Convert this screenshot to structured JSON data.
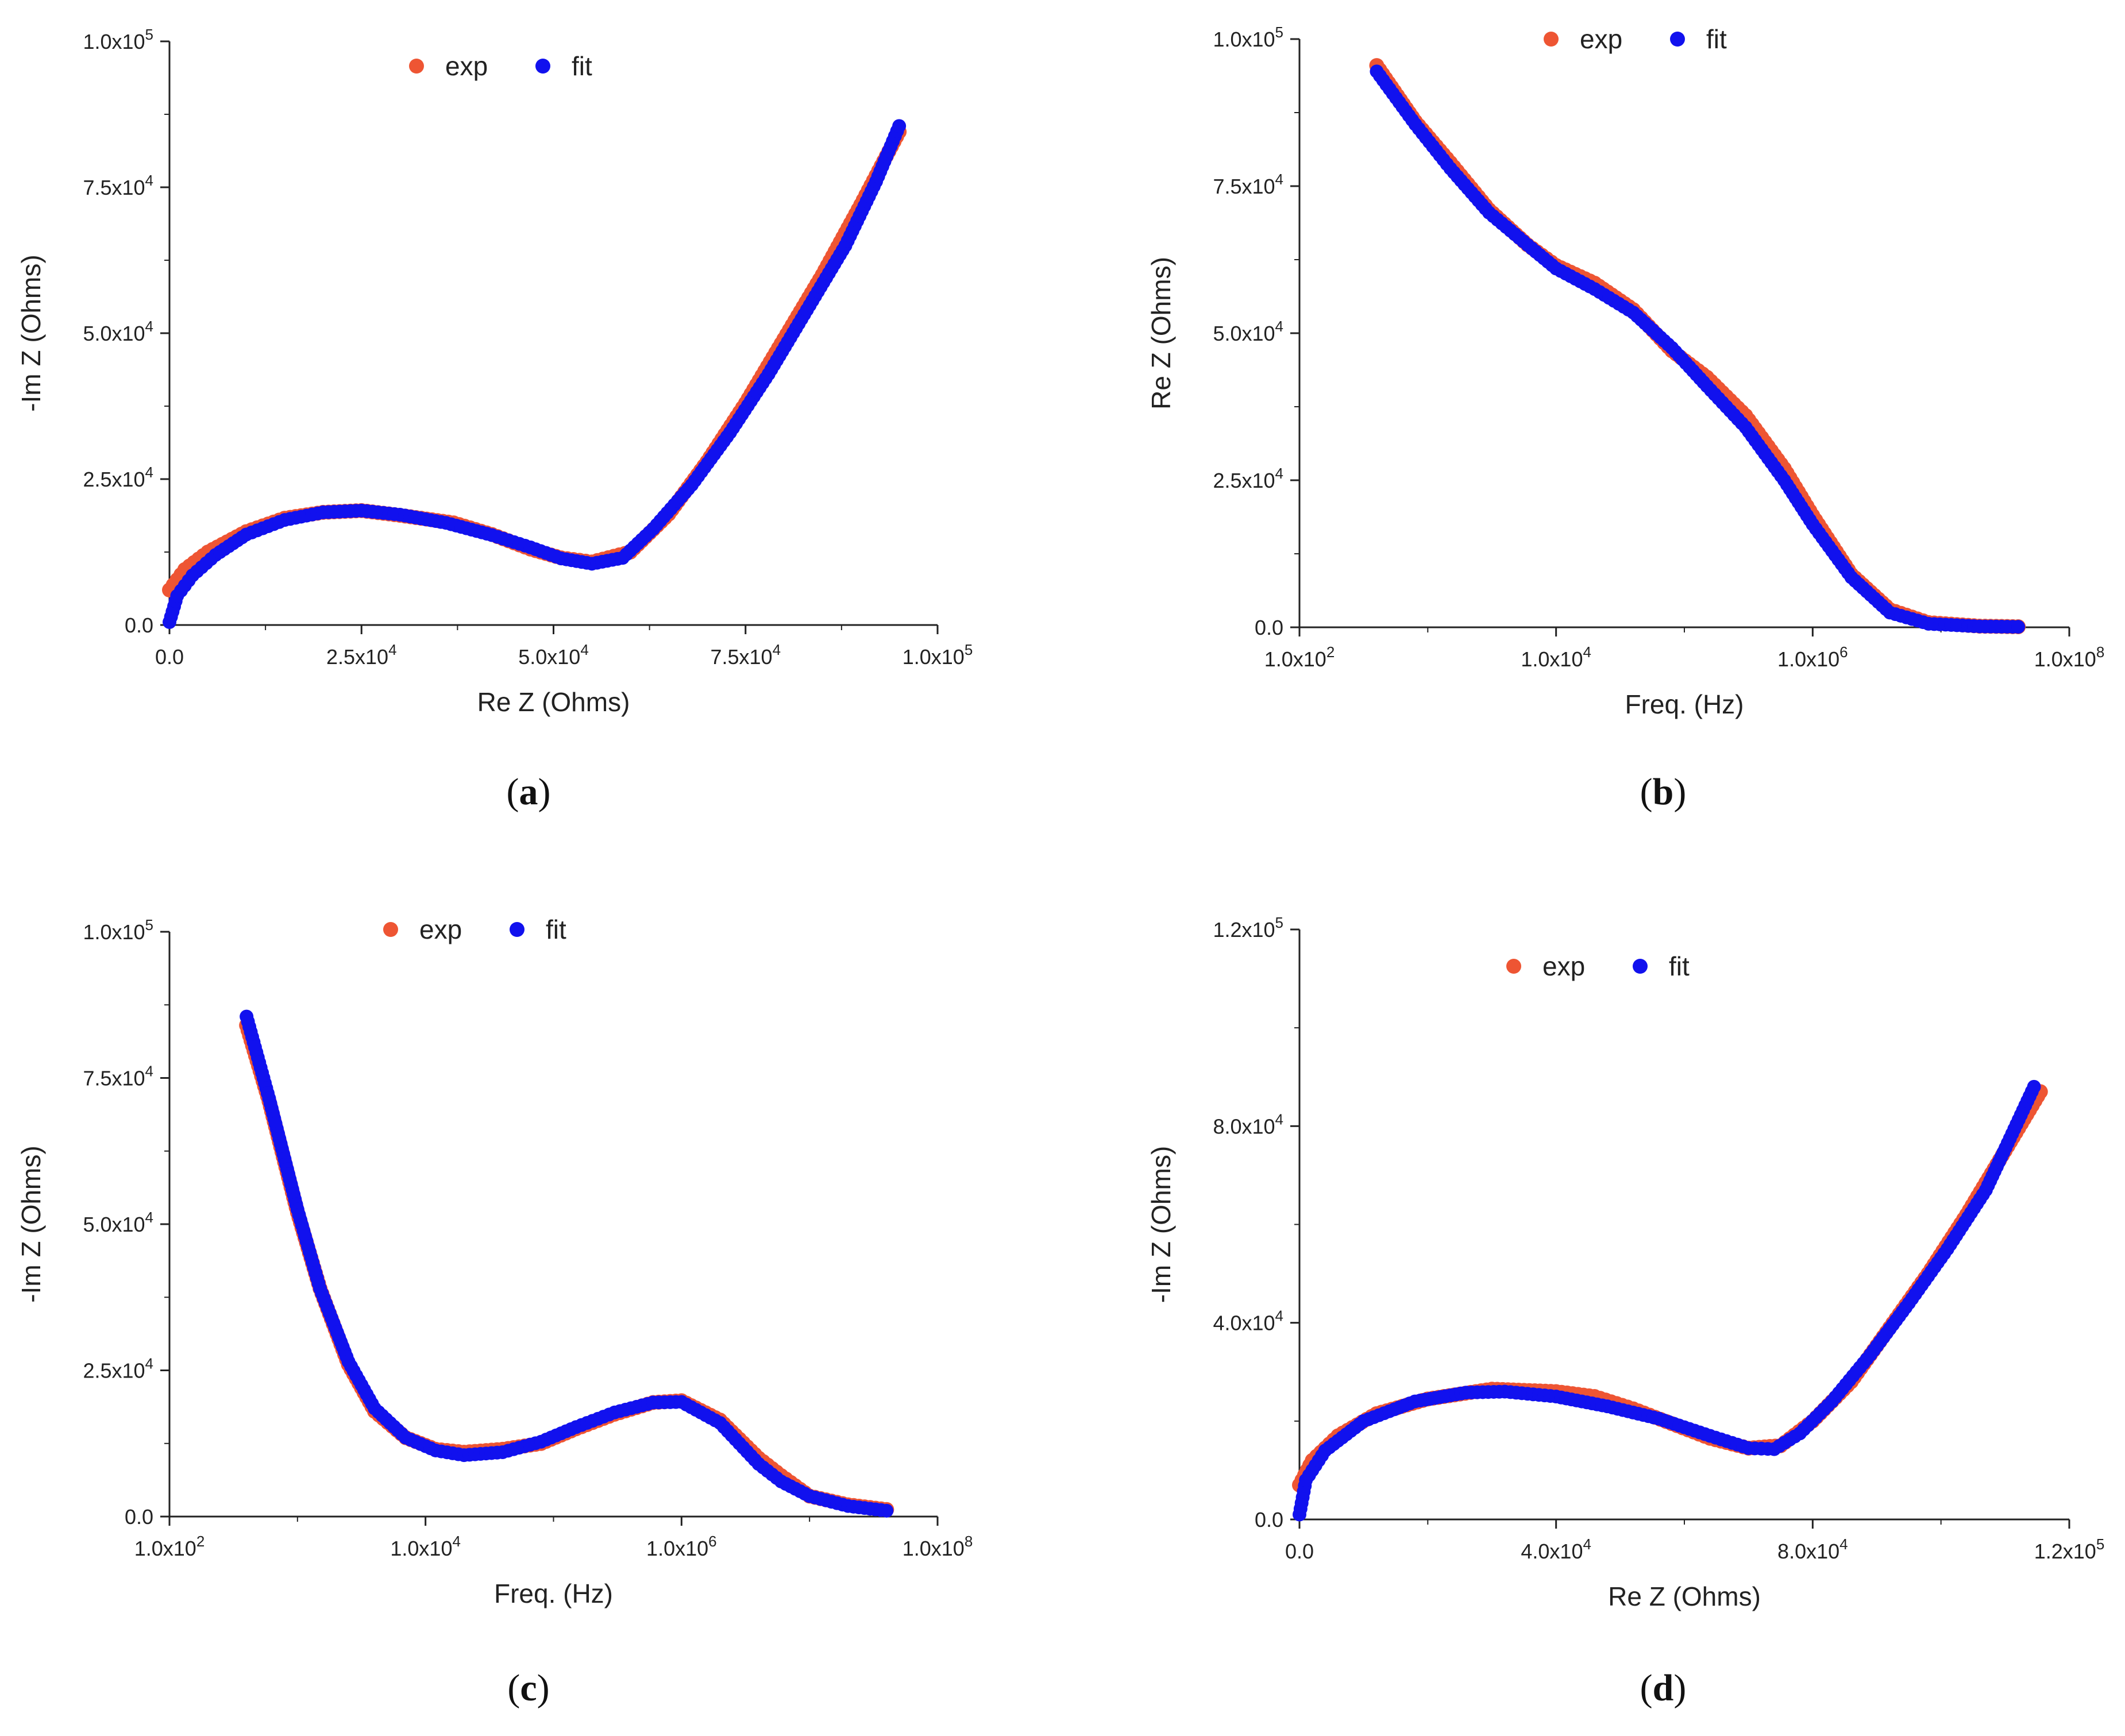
{
  "colors": {
    "exp": "#ee5533",
    "fit": "#1111ee",
    "axis": "#222222"
  },
  "chart_data": [
    {
      "id": "a",
      "type": "scatter",
      "panel_label": "a",
      "xscale": "linear",
      "xlabel": "Re Z (Ohms)",
      "ylabel": "-Im Z (Ohms)",
      "xlim": [
        0,
        100000
      ],
      "ylim": [
        0,
        100000
      ],
      "xticks": [
        {
          "v": 0,
          "m": "0.0",
          "e": ""
        },
        {
          "v": 25000,
          "m": "2.5x10",
          "e": "4"
        },
        {
          "v": 50000,
          "m": "5.0x10",
          "e": "4"
        },
        {
          "v": 75000,
          "m": "7.5x10",
          "e": "4"
        },
        {
          "v": 100000,
          "m": "1.0x10",
          "e": "5"
        }
      ],
      "yticks": [
        {
          "v": 0,
          "m": "0.0",
          "e": ""
        },
        {
          "v": 25000,
          "m": "2.5x10",
          "e": "4"
        },
        {
          "v": 50000,
          "m": "5.0x10",
          "e": "4"
        },
        {
          "v": 75000,
          "m": "7.5x10",
          "e": "4"
        },
        {
          "v": 100000,
          "m": "1.0x10",
          "e": "5"
        }
      ],
      "legend": [
        "exp",
        "fit"
      ],
      "series": [
        {
          "name": "exp",
          "points": [
            [
              0,
              6000
            ],
            [
              2000,
              9500
            ],
            [
              5000,
              12500
            ],
            [
              10000,
              16000
            ],
            [
              15000,
              18300
            ],
            [
              20000,
              19300
            ],
            [
              25000,
              19600
            ],
            [
              30000,
              18800
            ],
            [
              37000,
              17500
            ],
            [
              42000,
              15500
            ],
            [
              47000,
              13000
            ],
            [
              51000,
              11500
            ],
            [
              55000,
              10800
            ],
            [
              60000,
              12500
            ],
            [
              65000,
              19000
            ],
            [
              70000,
              28000
            ],
            [
              75000,
              38000
            ],
            [
              80000,
              49000
            ],
            [
              85000,
              60000
            ],
            [
              90000,
              72000
            ],
            [
              95000,
              84500
            ]
          ]
        },
        {
          "name": "fit",
          "points": [
            [
              0,
              500
            ],
            [
              1000,
              5000
            ],
            [
              3000,
              8500
            ],
            [
              6000,
              12000
            ],
            [
              10000,
              15500
            ],
            [
              15000,
              18000
            ],
            [
              20000,
              19300
            ],
            [
              25000,
              19600
            ],
            [
              30000,
              18900
            ],
            [
              36000,
              17500
            ],
            [
              42000,
              15400
            ],
            [
              47000,
              13300
            ],
            [
              51000,
              11400
            ],
            [
              55000,
              10500
            ],
            [
              59000,
              11500
            ],
            [
              63000,
              16500
            ],
            [
              68000,
              24000
            ],
            [
              73000,
              33000
            ],
            [
              78000,
              43000
            ],
            [
              83000,
              54000
            ],
            [
              88000,
              65000
            ],
            [
              92000,
              76000
            ],
            [
              95000,
              85500
            ]
          ]
        }
      ]
    },
    {
      "id": "b",
      "type": "scatter",
      "panel_label": "b",
      "xscale": "log",
      "xlabel": "Freq. (Hz)",
      "ylabel": "Re Z (Ohms)",
      "xlim": [
        100,
        100000000
      ],
      "ylim": [
        0,
        100000
      ],
      "xticks": [
        {
          "v": 100,
          "m": "1.0x10",
          "e": "2"
        },
        {
          "v": 10000,
          "m": "1.0x10",
          "e": "4"
        },
        {
          "v": 1000000,
          "m": "1.0x10",
          "e": "6"
        },
        {
          "v": 100000000,
          "m": "1.0x10",
          "e": "8"
        }
      ],
      "yticks": [
        {
          "v": 0,
          "m": "0.0",
          "e": ""
        },
        {
          "v": 25000,
          "m": "2.5x10",
          "e": "4"
        },
        {
          "v": 50000,
          "m": "5.0x10",
          "e": "4"
        },
        {
          "v": 75000,
          "m": "7.5x10",
          "e": "4"
        },
        {
          "v": 100000,
          "m": "1.0x10",
          "e": "5"
        }
      ],
      "legend": [
        "exp",
        "fit"
      ],
      "series": [
        {
          "name": "exp",
          "points": [
            [
              400,
              95500
            ],
            [
              800,
              86000
            ],
            [
              1500,
              79000
            ],
            [
              3000,
              71000
            ],
            [
              6000,
              65000
            ],
            [
              10000,
              61500
            ],
            [
              20000,
              58500
            ],
            [
              40000,
              54000
            ],
            [
              80000,
              47000
            ],
            [
              150000,
              42500
            ],
            [
              300000,
              36000
            ],
            [
              600000,
              27000
            ],
            [
              1000000,
              19000
            ],
            [
              2000000,
              9000
            ],
            [
              4000000,
              3000
            ],
            [
              8000000,
              800
            ],
            [
              20000000,
              200
            ],
            [
              40000000,
              100
            ]
          ]
        },
        {
          "name": "fit",
          "points": [
            [
              400,
              94500
            ],
            [
              800,
              85500
            ],
            [
              1500,
              78000
            ],
            [
              3000,
              70500
            ],
            [
              6000,
              65000
            ],
            [
              10000,
              61000
            ],
            [
              20000,
              57500
            ],
            [
              40000,
              53500
            ],
            [
              80000,
              47500
            ],
            [
              150000,
              41000
            ],
            [
              300000,
              34000
            ],
            [
              600000,
              25000
            ],
            [
              1000000,
              17500
            ],
            [
              2000000,
              8500
            ],
            [
              4000000,
              2500
            ],
            [
              8000000,
              600
            ],
            [
              20000000,
              150
            ],
            [
              40000000,
              80
            ]
          ]
        }
      ]
    },
    {
      "id": "c",
      "type": "scatter",
      "panel_label": "c",
      "xscale": "log",
      "xlabel": "Freq. (Hz)",
      "ylabel": "-Im Z (Ohms)",
      "xlim": [
        100,
        100000000
      ],
      "ylim": [
        0,
        100000
      ],
      "xticks": [
        {
          "v": 100,
          "m": "1.0x10",
          "e": "2"
        },
        {
          "v": 10000,
          "m": "1.0x10",
          "e": "4"
        },
        {
          "v": 1000000,
          "m": "1.0x10",
          "e": "6"
        },
        {
          "v": 100000000,
          "m": "1.0x10",
          "e": "8"
        }
      ],
      "yticks": [
        {
          "v": 0,
          "m": "0.0",
          "e": ""
        },
        {
          "v": 25000,
          "m": "2.5x10",
          "e": "4"
        },
        {
          "v": 50000,
          "m": "5.0x10",
          "e": "4"
        },
        {
          "v": 75000,
          "m": "7.5x10",
          "e": "4"
        },
        {
          "v": 100000,
          "m": "1.0x10",
          "e": "5"
        }
      ],
      "legend": [
        "exp",
        "fit"
      ],
      "series": [
        {
          "name": "exp",
          "points": [
            [
              400,
              84000
            ],
            [
              600,
              71000
            ],
            [
              1000,
              52000
            ],
            [
              1500,
              39000
            ],
            [
              2500,
              26000
            ],
            [
              4000,
              18000
            ],
            [
              7000,
              13500
            ],
            [
              12000,
              11500
            ],
            [
              20000,
              11000
            ],
            [
              40000,
              11500
            ],
            [
              80000,
              12500
            ],
            [
              150000,
              15000
            ],
            [
              300000,
              17500
            ],
            [
              600000,
              19500
            ],
            [
              1000000,
              19800
            ],
            [
              2000000,
              16500
            ],
            [
              4000000,
              10000
            ],
            [
              6000000,
              7000
            ],
            [
              10000000,
              3500
            ],
            [
              20000000,
              2000
            ],
            [
              40000000,
              1200
            ]
          ]
        },
        {
          "name": "fit",
          "points": [
            [
              400,
              85500
            ],
            [
              600,
              71500
            ],
            [
              1000,
              52500
            ],
            [
              1500,
              39000
            ],
            [
              2500,
              26500
            ],
            [
              4000,
              18500
            ],
            [
              7000,
              13500
            ],
            [
              12000,
              11300
            ],
            [
              20000,
              10500
            ],
            [
              40000,
              11000
            ],
            [
              80000,
              12800
            ],
            [
              150000,
              15300
            ],
            [
              300000,
              17800
            ],
            [
              600000,
              19500
            ],
            [
              1000000,
              19600
            ],
            [
              2000000,
              16000
            ],
            [
              4000000,
              9000
            ],
            [
              6000000,
              6000
            ],
            [
              10000000,
              3500
            ],
            [
              20000000,
              1800
            ],
            [
              40000000,
              1000
            ]
          ]
        }
      ]
    },
    {
      "id": "d",
      "type": "scatter",
      "panel_label": "d",
      "xscale": "linear",
      "xlabel": "Re Z (Ohms)",
      "ylabel": "-Im Z (Ohms)",
      "xlim": [
        0,
        120000
      ],
      "ylim": [
        0,
        120000
      ],
      "xticks": [
        {
          "v": 0,
          "m": "0.0",
          "e": ""
        },
        {
          "v": 40000,
          "m": "4.0x10",
          "e": "4"
        },
        {
          "v": 80000,
          "m": "8.0x10",
          "e": "4"
        },
        {
          "v": 120000,
          "m": "1.2x10",
          "e": "5"
        }
      ],
      "yticks": [
        {
          "v": 0,
          "m": "0.0",
          "e": ""
        },
        {
          "v": 40000,
          "m": "4.0x10",
          "e": "4"
        },
        {
          "v": 80000,
          "m": "8.0x10",
          "e": "4"
        },
        {
          "v": 120000,
          "m": "1.2x10",
          "e": "5"
        }
      ],
      "legend": [
        "exp",
        "fit"
      ],
      "series": [
        {
          "name": "exp",
          "points": [
            [
              0,
              7000
            ],
            [
              2000,
              12000
            ],
            [
              6000,
              17000
            ],
            [
              12000,
              21500
            ],
            [
              20000,
              24500
            ],
            [
              30000,
              26500
            ],
            [
              40000,
              26000
            ],
            [
              46000,
              25000
            ],
            [
              52000,
              22500
            ],
            [
              58000,
              19500
            ],
            [
              64000,
              16500
            ],
            [
              70000,
              14500
            ],
            [
              75000,
              15000
            ],
            [
              80000,
              20000
            ],
            [
              86000,
              28000
            ],
            [
              92000,
              39000
            ],
            [
              98000,
              50000
            ],
            [
              104000,
              62000
            ],
            [
              110000,
              75000
            ],
            [
              115500,
              87000
            ]
          ]
        },
        {
          "name": "fit",
          "points": [
            [
              0,
              1000
            ],
            [
              1000,
              8000
            ],
            [
              4000,
              14000
            ],
            [
              10000,
              20000
            ],
            [
              18000,
              24000
            ],
            [
              26000,
              25800
            ],
            [
              32000,
              26000
            ],
            [
              40000,
              25000
            ],
            [
              48000,
              23000
            ],
            [
              56000,
              20500
            ],
            [
              64000,
              17000
            ],
            [
              70000,
              14500
            ],
            [
              74000,
              14300
            ],
            [
              78000,
              17500
            ],
            [
              83000,
              24000
            ],
            [
              89000,
              33500
            ],
            [
              95000,
              44000
            ],
            [
              101000,
              55000
            ],
            [
              107000,
              67000
            ],
            [
              114500,
              88000
            ]
          ]
        }
      ]
    }
  ]
}
